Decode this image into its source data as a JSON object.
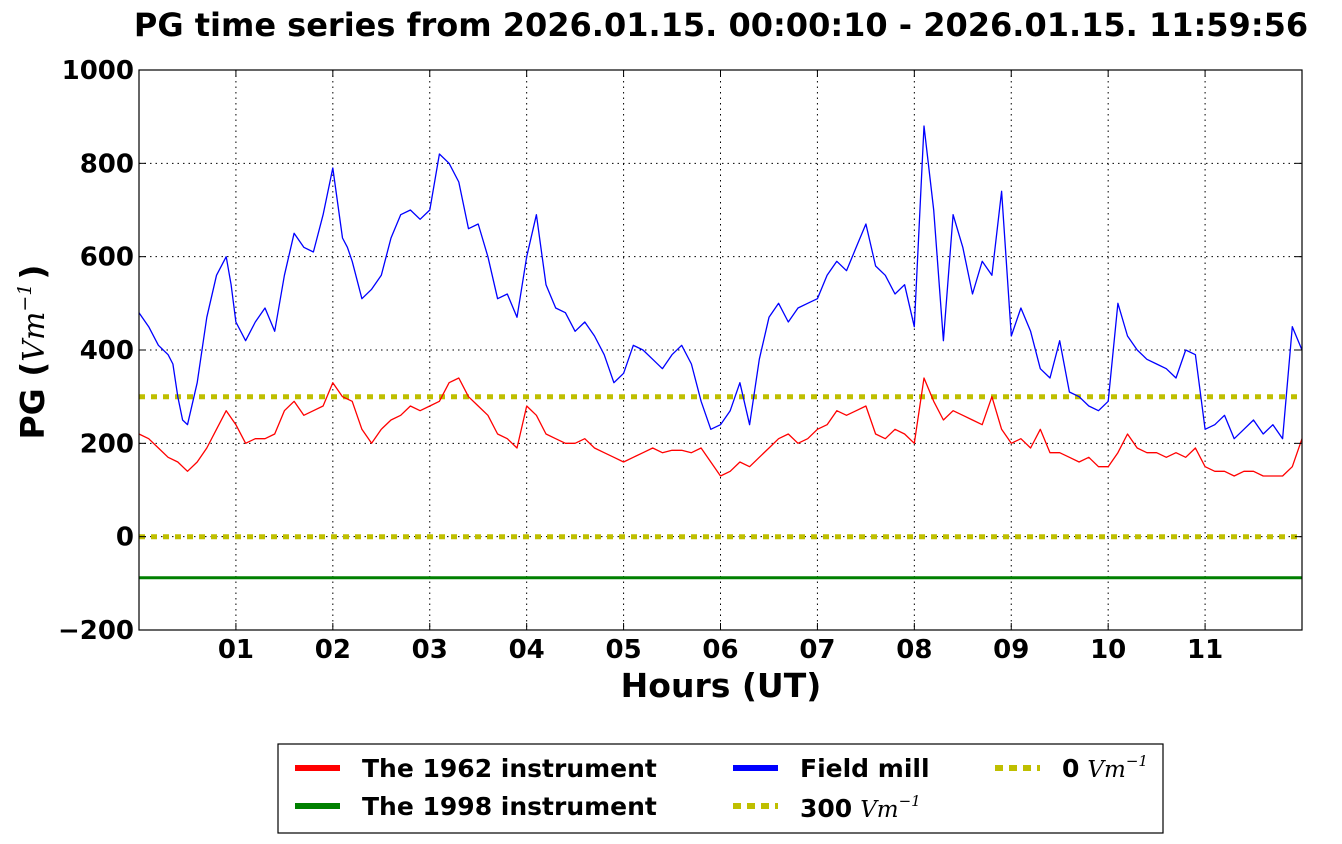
{
  "chart_data": {
    "type": "line",
    "title": "PG time series from 2026.01.15. 00:00:10 - 2026.01.15. 11:59:56",
    "xlabel": "Hours (UT)",
    "ylabel": "PG (Vm⁻¹)",
    "ylabel_parts": {
      "prefix": "PG (",
      "unit": "Vm",
      "exp": "−1",
      "suffix": ")"
    },
    "xlim": [
      0,
      12
    ],
    "ylim": [
      -200,
      1000
    ],
    "grid": true,
    "legend_position": "bottom-center",
    "xticks": [
      {
        "value": 1,
        "label": "01"
      },
      {
        "value": 2,
        "label": "02"
      },
      {
        "value": 3,
        "label": "03"
      },
      {
        "value": 4,
        "label": "04"
      },
      {
        "value": 5,
        "label": "05"
      },
      {
        "value": 6,
        "label": "06"
      },
      {
        "value": 7,
        "label": "07"
      },
      {
        "value": 8,
        "label": "08"
      },
      {
        "value": 9,
        "label": "09"
      },
      {
        "value": 10,
        "label": "10"
      },
      {
        "value": 11,
        "label": "11"
      }
    ],
    "yticks": [
      {
        "value": -200,
        "label": "−200"
      },
      {
        "value": 0,
        "label": "0"
      },
      {
        "value": 200,
        "label": "200"
      },
      {
        "value": 400,
        "label": "400"
      },
      {
        "value": 600,
        "label": "600"
      },
      {
        "value": 800,
        "label": "800"
      },
      {
        "value": 1000,
        "label": "1000"
      }
    ],
    "series": [
      {
        "name": "Field mill",
        "color": "#0000ff",
        "style": "solid",
        "x": [
          0,
          0.1,
          0.2,
          0.3,
          0.35,
          0.4,
          0.45,
          0.5,
          0.6,
          0.7,
          0.8,
          0.9,
          0.95,
          1.0,
          1.1,
          1.2,
          1.3,
          1.4,
          1.5,
          1.6,
          1.7,
          1.8,
          1.9,
          2.0,
          2.1,
          2.15,
          2.2,
          2.3,
          2.4,
          2.5,
          2.6,
          2.7,
          2.8,
          2.9,
          3.0,
          3.1,
          3.2,
          3.3,
          3.4,
          3.5,
          3.6,
          3.7,
          3.8,
          3.9,
          4.0,
          4.1,
          4.2,
          4.3,
          4.4,
          4.5,
          4.6,
          4.7,
          4.8,
          4.9,
          5.0,
          5.1,
          5.2,
          5.3,
          5.4,
          5.5,
          5.6,
          5.7,
          5.8,
          5.9,
          6.0,
          6.1,
          6.2,
          6.3,
          6.4,
          6.5,
          6.6,
          6.7,
          6.8,
          6.9,
          7.0,
          7.1,
          7.2,
          7.3,
          7.4,
          7.5,
          7.6,
          7.7,
          7.8,
          7.9,
          8.0,
          8.1,
          8.2,
          8.3,
          8.4,
          8.5,
          8.6,
          8.7,
          8.8,
          8.9,
          9.0,
          9.1,
          9.2,
          9.3,
          9.4,
          9.5,
          9.6,
          9.7,
          9.8,
          9.9,
          10.0,
          10.1,
          10.2,
          10.3,
          10.4,
          10.5,
          10.6,
          10.7,
          10.8,
          10.9,
          11.0,
          11.1,
          11.2,
          11.3,
          11.4,
          11.5,
          11.6,
          11.7,
          11.8,
          11.9,
          12.0
        ],
        "values": [
          480,
          450,
          410,
          390,
          370,
          300,
          250,
          240,
          330,
          470,
          560,
          600,
          540,
          460,
          420,
          460,
          490,
          440,
          560,
          650,
          620,
          610,
          690,
          790,
          640,
          620,
          590,
          510,
          530,
          560,
          640,
          690,
          700,
          680,
          700,
          820,
          800,
          760,
          660,
          670,
          600,
          510,
          520,
          470,
          600,
          690,
          540,
          490,
          480,
          440,
          460,
          430,
          390,
          330,
          350,
          410,
          400,
          380,
          360,
          390,
          410,
          370,
          290,
          230,
          240,
          270,
          330,
          240,
          380,
          470,
          500,
          460,
          490,
          500,
          510,
          560,
          590,
          570,
          620,
          670,
          580,
          560,
          520,
          540,
          450,
          880,
          700,
          420,
          690,
          620,
          520,
          590,
          560,
          740,
          430,
          490,
          440,
          360,
          340,
          420,
          310,
          300,
          280,
          270,
          290,
          500,
          430,
          400,
          380,
          370,
          360,
          340,
          400,
          390,
          230,
          240,
          260,
          210,
          230,
          250,
          220,
          240,
          210,
          450,
          400
        ]
      },
      {
        "name": "The 1962 instrument",
        "color": "#ff0000",
        "style": "solid",
        "x": [
          0,
          0.1,
          0.2,
          0.3,
          0.4,
          0.5,
          0.6,
          0.7,
          0.8,
          0.9,
          1.0,
          1.1,
          1.2,
          1.3,
          1.4,
          1.5,
          1.6,
          1.7,
          1.8,
          1.9,
          2.0,
          2.1,
          2.2,
          2.3,
          2.4,
          2.5,
          2.6,
          2.7,
          2.8,
          2.9,
          3.0,
          3.1,
          3.2,
          3.3,
          3.4,
          3.5,
          3.6,
          3.7,
          3.8,
          3.9,
          4.0,
          4.1,
          4.2,
          4.3,
          4.4,
          4.5,
          4.6,
          4.7,
          4.8,
          4.9,
          5.0,
          5.1,
          5.2,
          5.3,
          5.4,
          5.5,
          5.6,
          5.7,
          5.8,
          5.9,
          6.0,
          6.1,
          6.2,
          6.3,
          6.4,
          6.5,
          6.6,
          6.7,
          6.8,
          6.9,
          7.0,
          7.1,
          7.2,
          7.3,
          7.4,
          7.5,
          7.6,
          7.7,
          7.8,
          7.9,
          8.0,
          8.1,
          8.2,
          8.3,
          8.4,
          8.5,
          8.6,
          8.7,
          8.8,
          8.9,
          9.0,
          9.1,
          9.2,
          9.3,
          9.4,
          9.5,
          9.6,
          9.7,
          9.8,
          9.9,
          10.0,
          10.1,
          10.2,
          10.3,
          10.4,
          10.5,
          10.6,
          10.7,
          10.8,
          10.9,
          11.0,
          11.1,
          11.2,
          11.3,
          11.4,
          11.5,
          11.6,
          11.7,
          11.8,
          11.9,
          12.0
        ],
        "values": [
          220,
          210,
          190,
          170,
          160,
          140,
          160,
          190,
          230,
          270,
          240,
          200,
          210,
          210,
          220,
          270,
          290,
          260,
          270,
          280,
          330,
          300,
          290,
          230,
          200,
          230,
          250,
          260,
          280,
          270,
          280,
          290,
          330,
          340,
          300,
          280,
          260,
          220,
          210,
          190,
          280,
          260,
          220,
          210,
          200,
          200,
          210,
          190,
          180,
          170,
          160,
          170,
          180,
          190,
          180,
          185,
          185,
          180,
          190,
          160,
          130,
          140,
          160,
          150,
          170,
          190,
          210,
          220,
          200,
          210,
          230,
          240,
          270,
          260,
          270,
          280,
          220,
          210,
          230,
          220,
          200,
          340,
          290,
          250,
          270,
          260,
          250,
          240,
          300,
          230,
          200,
          210,
          190,
          230,
          180,
          180,
          170,
          160,
          170,
          150,
          150,
          180,
          220,
          190,
          180,
          180,
          170,
          180,
          170,
          190,
          150,
          140,
          140,
          130,
          140,
          140,
          130,
          130,
          130,
          150,
          210
        ]
      },
      {
        "name": "The 1998 instrument",
        "color": "#008000",
        "style": "solid",
        "x": [
          0,
          12
        ],
        "values": [
          -88,
          -88
        ]
      },
      {
        "name": "300 Vm⁻¹",
        "legend_value": "300",
        "color": "#bfbf00",
        "style": "dashed",
        "x": [
          0,
          12
        ],
        "values": [
          300,
          300
        ]
      },
      {
        "name": "0 Vm⁻¹",
        "legend_value": "0",
        "color": "#bfbf00",
        "style": "dashed",
        "x": [
          0,
          12
        ],
        "values": [
          0,
          0
        ]
      }
    ]
  },
  "legend": {
    "unit": "Vm",
    "exp": "−1",
    "columns": [
      [
        "The 1962 instrument",
        "The 1998 instrument"
      ],
      [
        "Field mill",
        "300 Vm⁻¹"
      ],
      [
        "0 Vm⁻¹"
      ]
    ]
  }
}
